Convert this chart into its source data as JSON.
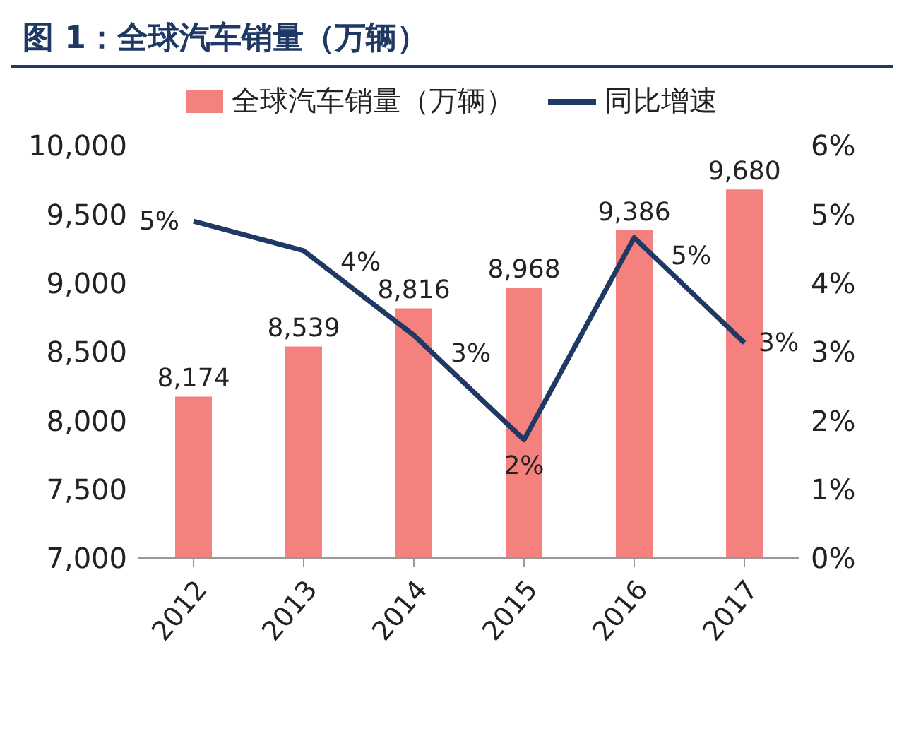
{
  "chart_data": {
    "type": "bar",
    "title": "图 1：全球汽车销量（万辆）",
    "categories": [
      "2012",
      "2013",
      "2014",
      "2015",
      "2016",
      "2017"
    ],
    "series": [
      {
        "name": "全球汽车销量（万辆）",
        "color": "#f4817e",
        "values": [
          8174,
          8539,
          8816,
          8968,
          9386,
          9680
        ],
        "value_labels": [
          "8,174",
          "8,539",
          "8,816",
          "8,968",
          "9,386",
          "9,680"
        ]
      },
      {
        "name": "同比增速",
        "type": "line",
        "axis": "y2",
        "color": "#1f3864",
        "values": [
          4.9,
          4.47,
          3.24,
          1.72,
          4.66,
          3.13
        ],
        "value_labels": [
          "5%",
          "4%",
          "3%",
          "2%",
          "5%",
          "3%"
        ]
      }
    ],
    "ylim": [
      7000,
      10000
    ],
    "yticks": [
      {
        "value": 7000,
        "label": "7,000"
      },
      {
        "value": 7500,
        "label": "7,500"
      },
      {
        "value": 8000,
        "label": "8,000"
      },
      {
        "value": 8500,
        "label": "8,500"
      },
      {
        "value": 9000,
        "label": "9,000"
      },
      {
        "value": 9500,
        "label": "9,500"
      },
      {
        "value": 10000,
        "label": "10,000"
      }
    ],
    "y2lim": [
      0,
      6
    ],
    "y2ticks": [
      {
        "value": 0,
        "label": "0%"
      },
      {
        "value": 1,
        "label": "1%"
      },
      {
        "value": 2,
        "label": "2%"
      },
      {
        "value": 3,
        "label": "3%"
      },
      {
        "value": 4,
        "label": "4%"
      },
      {
        "value": 5,
        "label": "5%"
      },
      {
        "value": 6,
        "label": "6%"
      }
    ],
    "legend": "top",
    "grid": false,
    "marker": "none",
    "line_style": "solid"
  }
}
